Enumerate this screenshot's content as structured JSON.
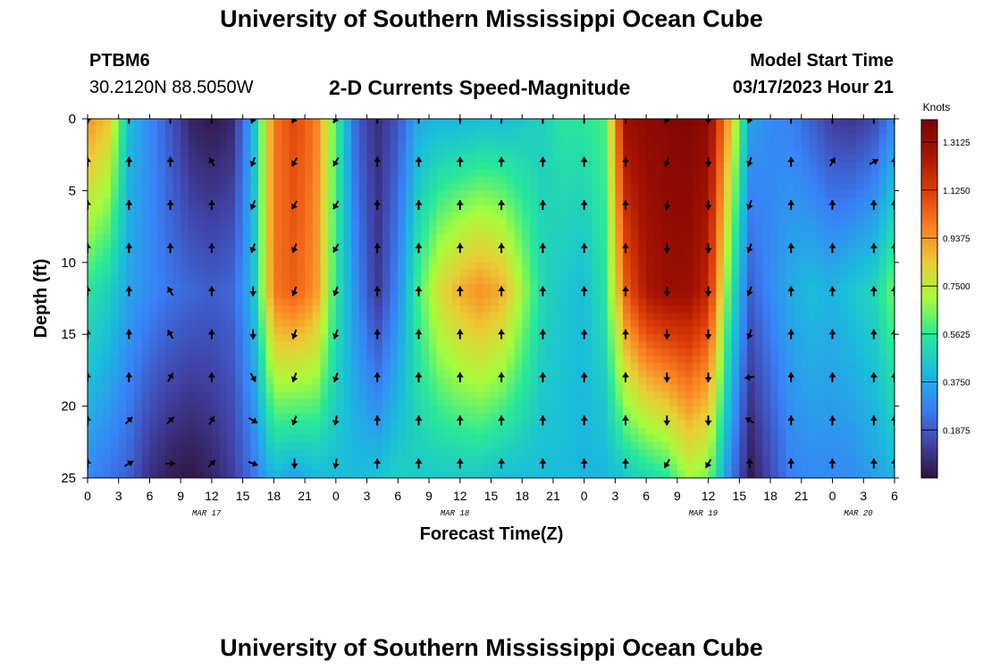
{
  "page": {
    "title": "University of Southern Mississippi Ocean Cube",
    "footer_title": "University of Southern Mississippi Ocean Cube",
    "station_id": "PTBM6",
    "station_coords": "30.2120N  88.5050W",
    "plot_title": "2-D Currents Speed-Magnitude",
    "model_start_label": "Model Start Time",
    "model_start_value": "03/17/2023 Hour 21"
  },
  "chart_data": {
    "type": "heatmap",
    "title": "2-D Currents Speed-Magnitude",
    "xlabel": "Forecast Time(Z)",
    "ylabel": "Depth (ft)",
    "x_hours_range": [
      0,
      78
    ],
    "ylim": [
      0,
      25
    ],
    "y_ticks": [
      0,
      5,
      10,
      15,
      20,
      25
    ],
    "x_tick_hours": [
      0,
      3,
      6,
      9,
      12,
      15,
      18,
      21,
      24,
      27,
      30,
      33,
      36,
      39,
      42,
      45,
      48,
      51,
      54,
      57,
      60,
      63,
      66,
      69,
      72,
      75,
      78
    ],
    "x_tick_labels": [
      "0",
      "3",
      "6",
      "9",
      "12",
      "15",
      "18",
      "21",
      "0",
      "3",
      "6",
      "9",
      "12",
      "15",
      "18",
      "21",
      "0",
      "3",
      "6",
      "9",
      "12",
      "15",
      "18",
      "21",
      "0",
      "3",
      "6"
    ],
    "date_labels": [
      {
        "text": "MAR 17",
        "hour": 11.5
      },
      {
        "text": "MAR 18",
        "hour": 35.5
      },
      {
        "text": "MAR 19",
        "hour": 59.5
      },
      {
        "text": "MAR 20",
        "hour": 74.5
      }
    ],
    "colorbar": {
      "title": "Knots",
      "min": 0,
      "max": 1.4,
      "ticks": [
        0.1875,
        0.375,
        0.5625,
        0.75,
        0.9375,
        1.125,
        1.3125
      ],
      "tick_labels": [
        "0.1875",
        "0.3750",
        "0.5625",
        "0.7500",
        "0.9375",
        "1.1250",
        "1.3125"
      ]
    },
    "speed_profile": {
      "hours": [
        0,
        2,
        4,
        6,
        8,
        10,
        12,
        14,
        16,
        18,
        20,
        22,
        24,
        26,
        28,
        30,
        32,
        34,
        36,
        38,
        40,
        42,
        44,
        46,
        48,
        50,
        52,
        54,
        56,
        58,
        60,
        62,
        64,
        66,
        68,
        70,
        72,
        74,
        76,
        78
      ],
      "depth_levels": [
        0,
        12,
        25
      ],
      "speed_top": [
        0.95,
        0.85,
        0.42,
        0.3,
        0.18,
        0.05,
        0.02,
        0.06,
        0.4,
        1.0,
        1.1,
        1.0,
        0.6,
        0.2,
        0.08,
        0.18,
        0.38,
        0.4,
        0.4,
        0.42,
        0.42,
        0.45,
        0.48,
        0.55,
        0.55,
        0.6,
        1.3,
        1.34,
        1.36,
        1.38,
        1.34,
        0.9,
        0.35,
        0.3,
        0.28,
        0.2,
        0.12,
        0.1,
        0.15,
        0.3
      ],
      "speed_mid": [
        0.55,
        0.48,
        0.36,
        0.3,
        0.25,
        0.22,
        0.2,
        0.22,
        0.42,
        1.0,
        1.05,
        0.95,
        0.55,
        0.3,
        0.1,
        0.3,
        0.6,
        0.8,
        0.9,
        0.95,
        0.9,
        0.7,
        0.5,
        0.45,
        0.42,
        0.55,
        1.05,
        1.25,
        1.3,
        1.3,
        1.2,
        0.6,
        0.2,
        0.3,
        0.38,
        0.42,
        0.4,
        0.45,
        0.5,
        0.65
      ],
      "speed_bot": [
        0.3,
        0.25,
        0.2,
        0.08,
        0.03,
        0.01,
        0.05,
        0.12,
        0.25,
        0.4,
        0.35,
        0.4,
        0.42,
        0.42,
        0.44,
        0.48,
        0.46,
        0.45,
        0.45,
        0.45,
        0.42,
        0.42,
        0.42,
        0.42,
        0.4,
        0.4,
        0.45,
        0.5,
        0.55,
        0.7,
        0.65,
        0.3,
        0.02,
        0.15,
        0.28,
        0.3,
        0.3,
        0.3,
        0.35,
        0.4
      ]
    },
    "vector_hours": [
      0,
      4,
      8,
      12,
      16,
      20,
      24,
      28,
      32,
      36,
      40,
      44,
      48,
      52,
      56,
      60,
      64,
      68,
      72,
      76,
      78
    ],
    "vector_depths": [
      0,
      3,
      6,
      9,
      12,
      15,
      18,
      21,
      24
    ],
    "vector_directions_deg": [
      [
        180,
        0,
        0,
        0,
        0,
        0,
        0,
        0,
        0
      ],
      [
        0,
        0,
        0,
        0,
        0,
        0,
        0,
        45,
        60
      ],
      [
        0,
        0,
        0,
        0,
        330,
        330,
        30,
        45,
        90
      ],
      [
        0,
        330,
        0,
        0,
        0,
        0,
        0,
        30,
        45
      ],
      [
        200,
        200,
        200,
        200,
        180,
        180,
        150,
        120,
        110
      ],
      [
        210,
        210,
        210,
        200,
        200,
        200,
        200,
        200,
        180
      ],
      [
        210,
        210,
        210,
        210,
        200,
        200,
        200,
        190,
        190
      ],
      [
        0,
        0,
        0,
        0,
        0,
        0,
        0,
        0,
        0
      ],
      [
        0,
        0,
        0,
        0,
        0,
        0,
        0,
        0,
        0
      ],
      [
        0,
        0,
        0,
        0,
        0,
        0,
        0,
        0,
        0
      ],
      [
        0,
        0,
        0,
        0,
        0,
        0,
        0,
        0,
        0
      ],
      [
        0,
        0,
        0,
        0,
        0,
        0,
        0,
        0,
        0
      ],
      [
        0,
        0,
        0,
        0,
        0,
        0,
        0,
        0,
        0
      ],
      [
        0,
        0,
        0,
        0,
        0,
        0,
        0,
        0,
        0
      ],
      [
        200,
        200,
        190,
        180,
        180,
        180,
        180,
        180,
        210
      ],
      [
        180,
        180,
        180,
        180,
        180,
        180,
        180,
        180,
        210
      ],
      [
        200,
        200,
        200,
        200,
        200,
        200,
        260,
        300,
        0
      ],
      [
        0,
        0,
        0,
        0,
        0,
        0,
        0,
        0,
        0
      ],
      [
        0,
        30,
        0,
        0,
        0,
        0,
        0,
        0,
        0
      ],
      [
        0,
        60,
        0,
        0,
        0,
        0,
        0,
        0,
        0
      ],
      [
        0,
        0,
        0,
        0,
        0,
        0,
        0,
        0,
        0
      ]
    ]
  }
}
